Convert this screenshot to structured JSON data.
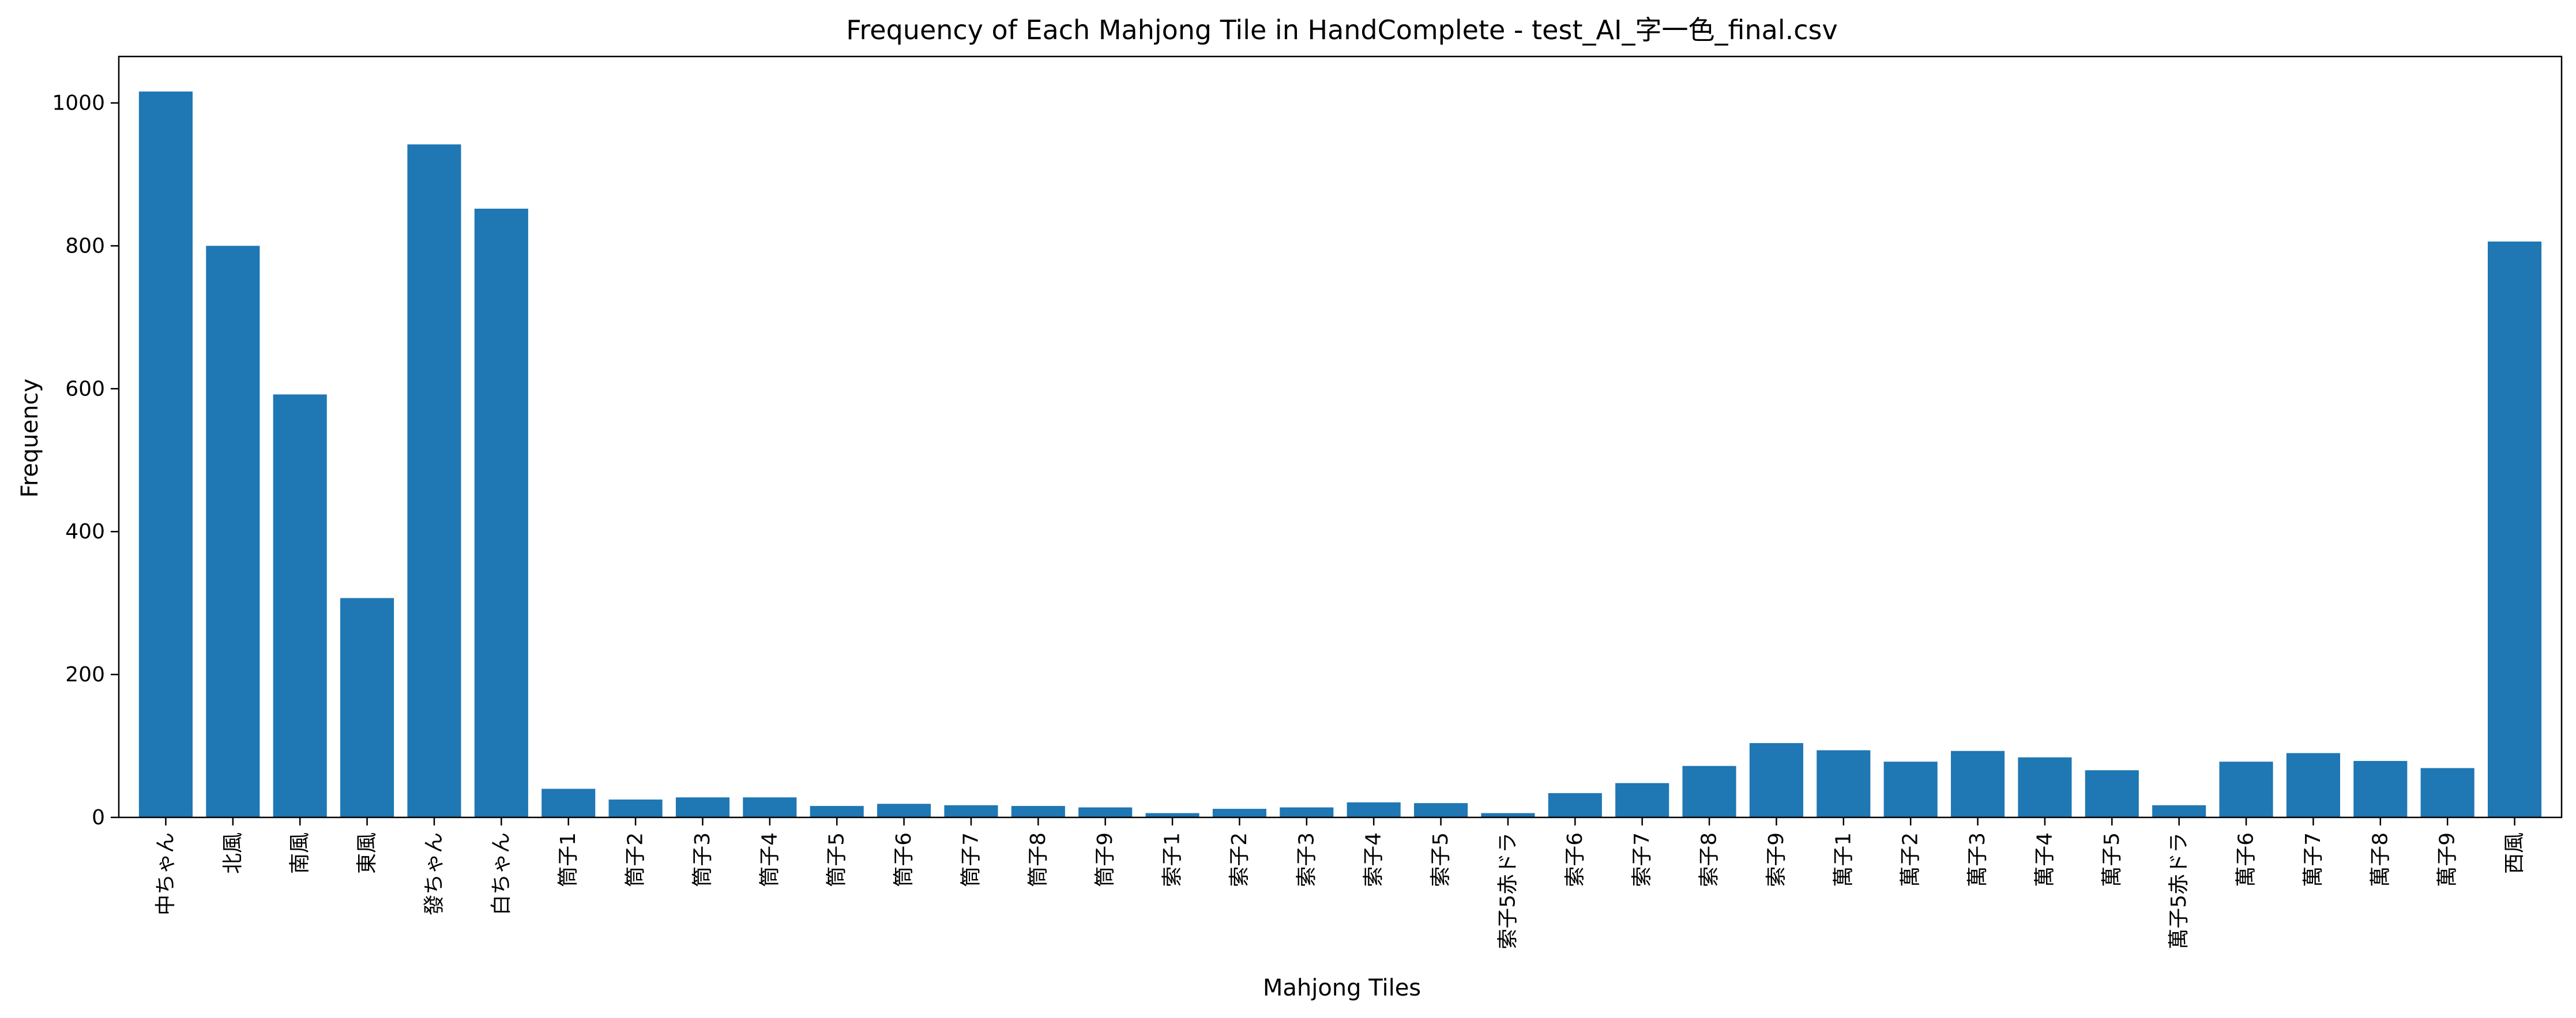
{
  "chart_data": {
    "type": "bar",
    "title": "Frequency of Each Mahjong Tile in HandComplete - test_AI_字一色_final.csv",
    "xlabel": "Mahjong Tiles",
    "ylabel": "Frequency",
    "ylim": [
      0,
      1065
    ],
    "yticks": [
      0,
      200,
      400,
      600,
      800,
      1000
    ],
    "grid": false,
    "bar_color": "#1f77b4",
    "categories": [
      "中ちゃん",
      "北風",
      "南風",
      "東風",
      "發ちゃん",
      "白ちゃん",
      "筒子1",
      "筒子2",
      "筒子3",
      "筒子4",
      "筒子5",
      "筒子6",
      "筒子7",
      "筒子8",
      "筒子9",
      "索子1",
      "索子2",
      "索子3",
      "索子4",
      "索子5",
      "索子5赤ドラ",
      "索子6",
      "索子7",
      "索子8",
      "索子9",
      "萬子1",
      "萬子2",
      "萬子3",
      "萬子4",
      "萬子5",
      "萬子5赤ドラ",
      "萬子6",
      "萬子7",
      "萬子8",
      "萬子9",
      "西風"
    ],
    "values": [
      1016,
      800,
      592,
      307,
      942,
      852,
      40,
      25,
      28,
      28,
      16,
      19,
      17,
      16,
      14,
      6,
      12,
      14,
      21,
      20,
      6,
      34,
      48,
      72,
      104,
      94,
      78,
      93,
      84,
      66,
      17,
      78,
      90,
      79,
      69,
      806
    ]
  }
}
